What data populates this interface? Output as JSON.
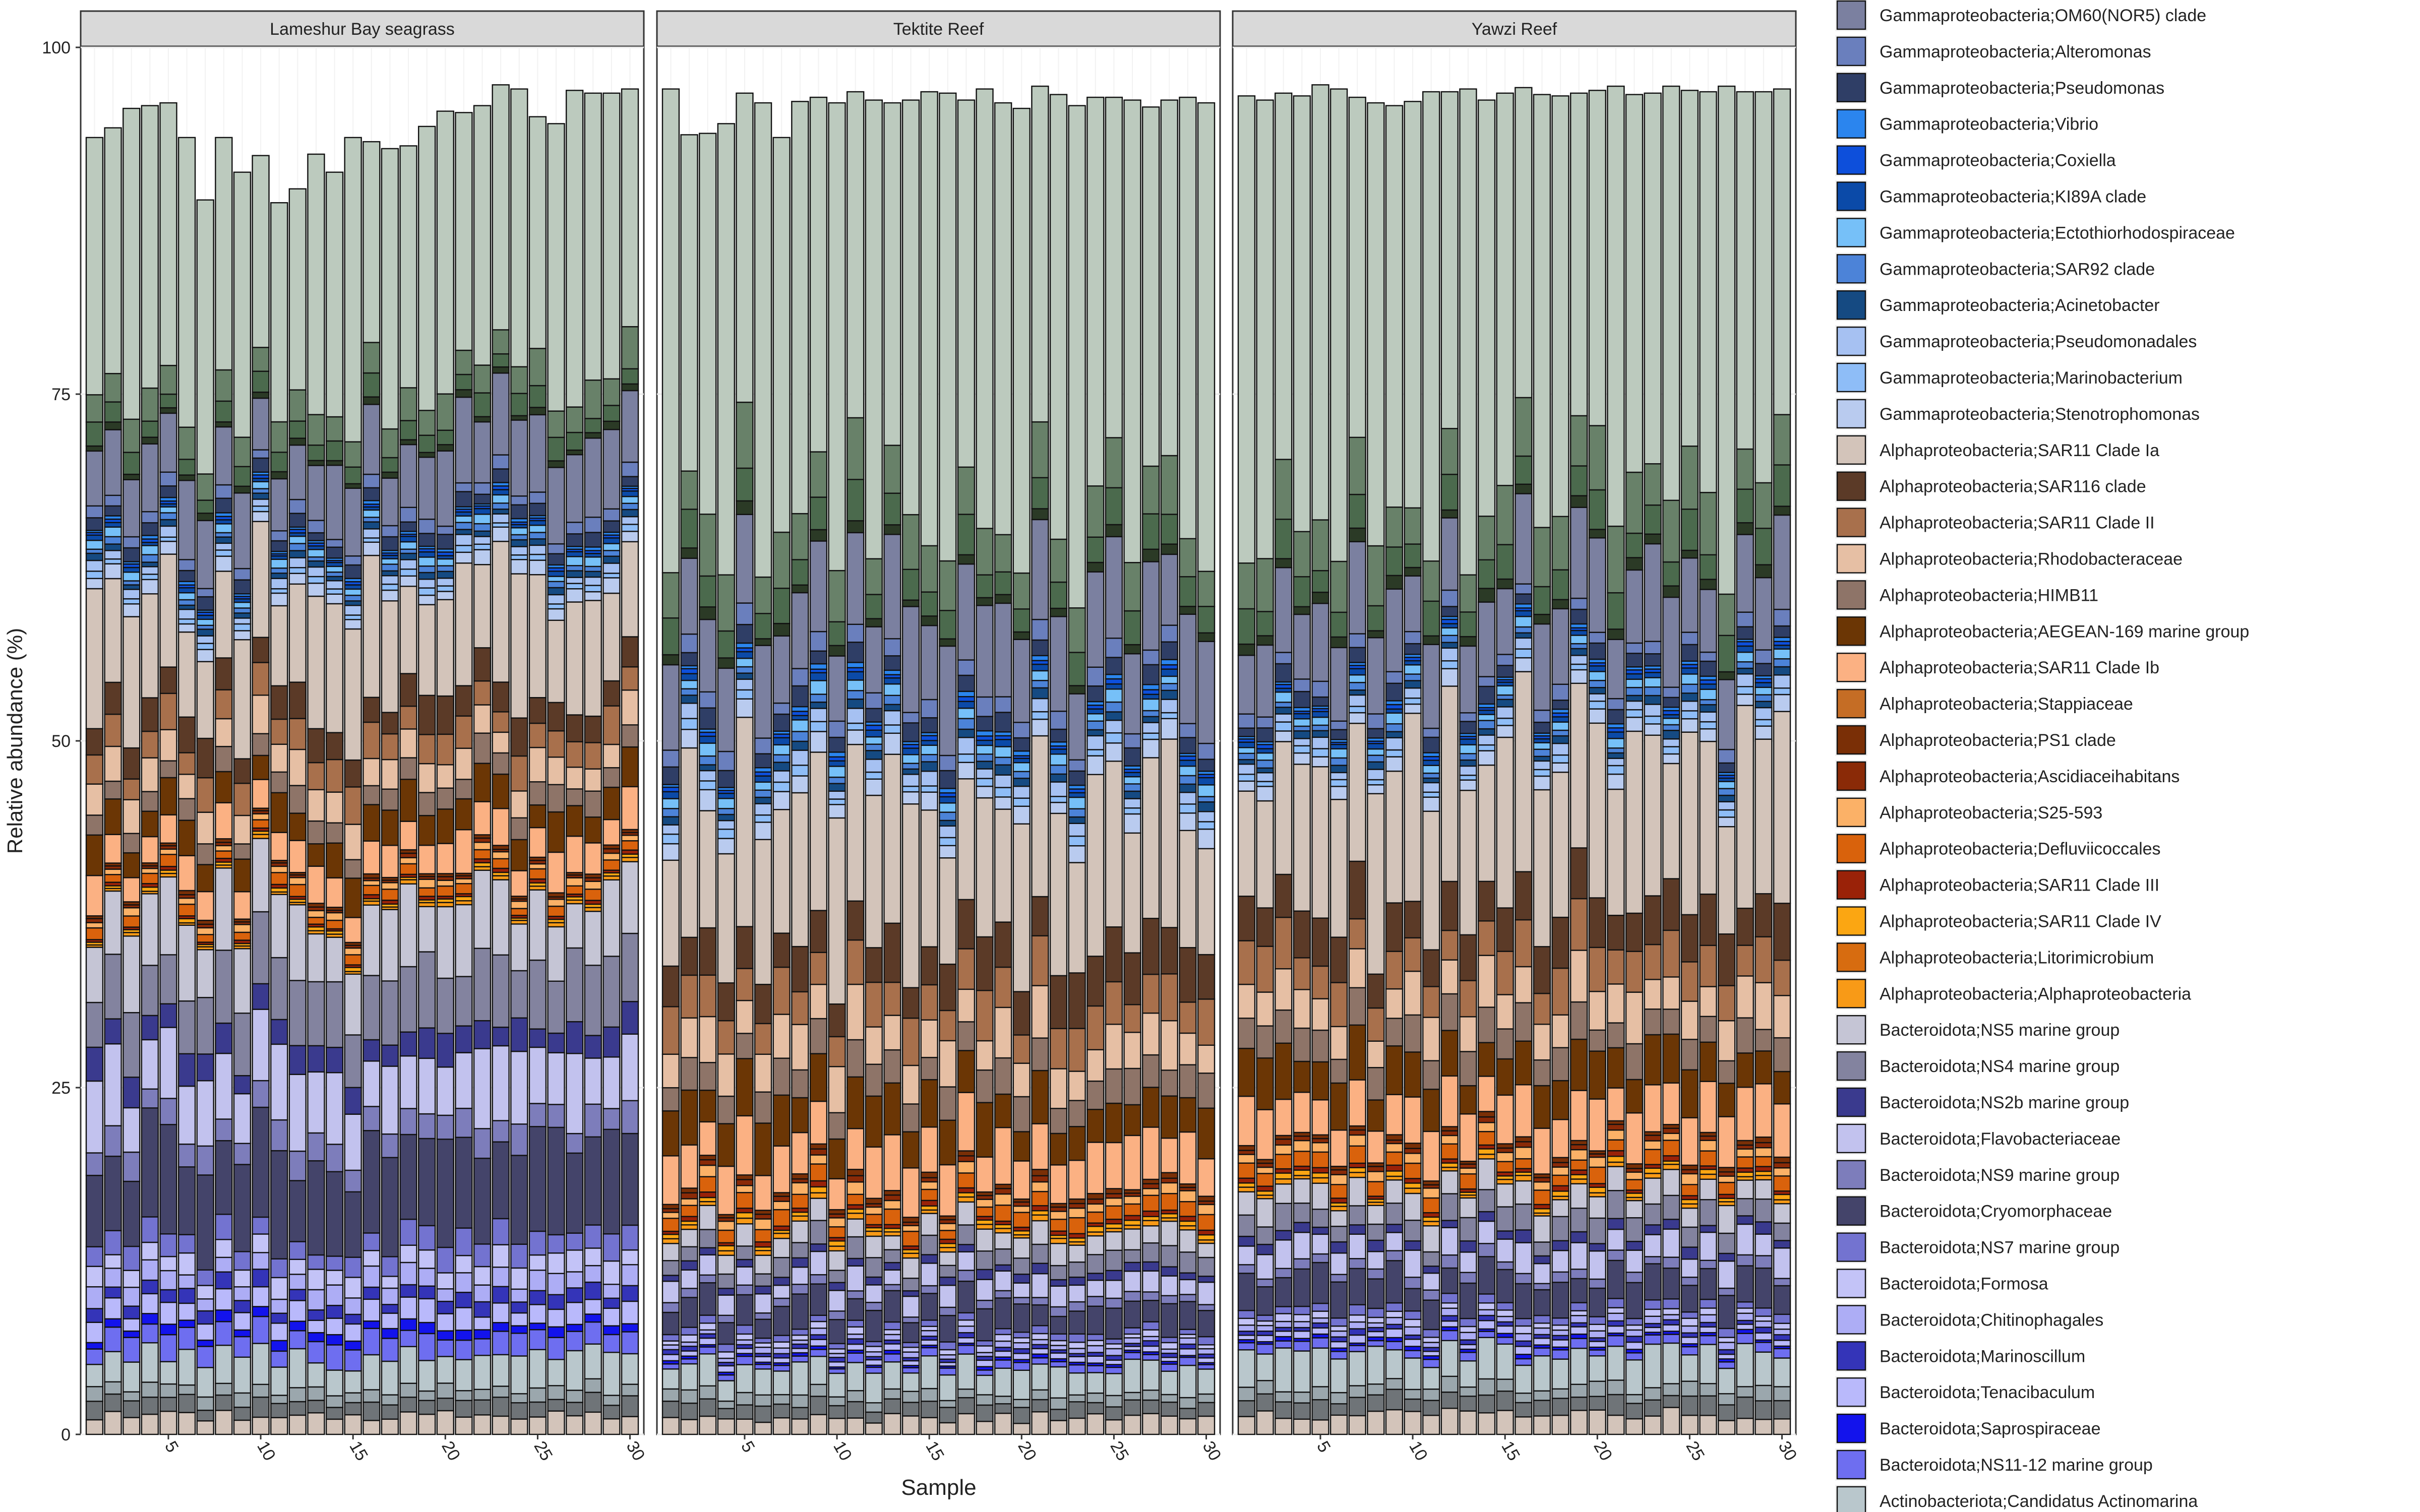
{
  "chart_data": {
    "type": "bar",
    "stacked": true,
    "faceted": true,
    "xlabel": "Sample",
    "ylabel": "Relative abundance (%)",
    "ylim": [
      0,
      100
    ],
    "yticks": [
      0,
      25,
      50,
      75,
      100
    ],
    "xticks": [
      5,
      10,
      15,
      20,
      25,
      30
    ],
    "samples_per_panel": 30,
    "grid": true,
    "legend_position": "right",
    "panels": [
      {
        "label": "Lameshur Bay seagrass",
        "totals": [
          93.5,
          94.2,
          95.6,
          95.8,
          96.0,
          93.5,
          89.0,
          93.5,
          91.0,
          92.2,
          88.8,
          89.8,
          92.3,
          91.0,
          93.5,
          93.2,
          92.7,
          92.9,
          94.3,
          95.4,
          95.3,
          95.8,
          97.3,
          97.0,
          95.0,
          94.5,
          96.9,
          96.7,
          96.7,
          97.0
        ],
        "shares": {
          "green": 24,
          "gamma": 11,
          "alpha": 25,
          "bact": 34,
          "actino": 6
        }
      },
      {
        "label": "Tektite Reef",
        "totals": [
          97.0,
          93.7,
          93.8,
          94.5,
          96.7,
          96.0,
          93.5,
          96.1,
          96.4,
          96.0,
          96.8,
          96.2,
          96.0,
          96.2,
          96.8,
          96.7,
          96.2,
          97.0,
          96.0,
          95.6,
          97.2,
          96.6,
          95.8,
          96.4,
          96.4,
          96.2,
          95.7,
          96.2,
          96.4,
          96.0
        ],
        "shares": {
          "green": 37,
          "gamma": 15,
          "alpha": 33,
          "bact": 10,
          "actino": 5
        }
      },
      {
        "label": "Yawzi Reef",
        "totals": [
          96.5,
          96.2,
          96.7,
          96.5,
          97.3,
          97.0,
          96.4,
          96.0,
          95.8,
          96.1,
          96.8,
          96.8,
          97.0,
          96.2,
          96.7,
          97.1,
          96.6,
          96.5,
          96.7,
          96.9,
          97.2,
          96.6,
          96.7,
          97.2,
          96.9,
          96.8,
          97.2,
          96.8,
          96.8,
          97.0
        ],
        "shares": {
          "green": 38,
          "gamma": 12,
          "alpha": 32,
          "bact": 12,
          "actino": 6
        }
      }
    ],
    "legend": [
      {
        "name": "Gammaproteobacteria;OM60(NOR5) clade",
        "color": "#7b80a0"
      },
      {
        "name": "Gammaproteobacteria;Alteromonas",
        "color": "#6a7fbd"
      },
      {
        "name": "Gammaproteobacteria;Pseudomonas",
        "color": "#2f3e66"
      },
      {
        "name": "Gammaproteobacteria;Vibrio",
        "color": "#2b85ee"
      },
      {
        "name": "Gammaproteobacteria;Coxiella",
        "color": "#0d4fdb"
      },
      {
        "name": "Gammaproteobacteria;KI89A clade",
        "color": "#0b4aa8"
      },
      {
        "name": "Gammaproteobacteria;Ectothiorhodospiraceae",
        "color": "#76c0f8"
      },
      {
        "name": "Gammaproteobacteria;SAR92 clade",
        "color": "#4c83d8"
      },
      {
        "name": "Gammaproteobacteria;Acinetobacter",
        "color": "#154a82"
      },
      {
        "name": "Gammaproteobacteria;Pseudomonadales",
        "color": "#a6c1f2"
      },
      {
        "name": "Gammaproteobacteria;Marinobacterium",
        "color": "#8ebdf7"
      },
      {
        "name": "Gammaproteobacteria;Stenotrophomonas",
        "color": "#b9cbef"
      },
      {
        "name": "Alphaproteobacteria;SAR11 Clade Ia",
        "color": "#d3c4ba"
      },
      {
        "name": "Alphaproteobacteria;SAR116 clade",
        "color": "#5b3a27"
      },
      {
        "name": "Alphaproteobacteria;SAR11 Clade II",
        "color": "#a8704c"
      },
      {
        "name": "Alphaproteobacteria;Rhodobacteraceae",
        "color": "#e6bfa4"
      },
      {
        "name": "Alphaproteobacteria;HIMB11",
        "color": "#8e7468"
      },
      {
        "name": "Alphaproteobacteria;AEGEAN-169 marine group",
        "color": "#6b3605"
      },
      {
        "name": "Alphaproteobacteria;SAR11 Clade Ib",
        "color": "#fbb183"
      },
      {
        "name": "Alphaproteobacteria;Stappiaceae",
        "color": "#c56d25"
      },
      {
        "name": "Alphaproteobacteria;PS1 clade",
        "color": "#7a2f06"
      },
      {
        "name": "Alphaproteobacteria;Ascidiaceihabitans",
        "color": "#8a2a07"
      },
      {
        "name": "Alphaproteobacteria;S25-593",
        "color": "#fbb167"
      },
      {
        "name": "Alphaproteobacteria;Defluviicoccales",
        "color": "#d9620c"
      },
      {
        "name": "Alphaproteobacteria;SAR11 Clade III",
        "color": "#9a2208"
      },
      {
        "name": "Alphaproteobacteria;SAR11 Clade IV",
        "color": "#fba612"
      },
      {
        "name": "Alphaproteobacteria;Litorimicrobium",
        "color": "#d76c10"
      },
      {
        "name": "Alphaproteobacteria;Alphaproteobacteria",
        "color": "#f89a17"
      },
      {
        "name": "Bacteroidota;NS5 marine group",
        "color": "#c5c5d5"
      },
      {
        "name": "Bacteroidota;NS4 marine group",
        "color": "#83839f"
      },
      {
        "name": "Bacteroidota;NS2b marine group",
        "color": "#3a3a8e"
      },
      {
        "name": "Bacteroidota;Flavobacteriaceae",
        "color": "#c2c2ee"
      },
      {
        "name": "Bacteroidota;NS9 marine group",
        "color": "#7d7dbb"
      },
      {
        "name": "Bacteroidota;Cryomorphaceae",
        "color": "#44446a"
      },
      {
        "name": "Bacteroidota;NS7 marine group",
        "color": "#7373d0"
      },
      {
        "name": "Bacteroidota;Formosa",
        "color": "#c3c3f7"
      },
      {
        "name": "Bacteroidota;Chitinophagales",
        "color": "#adadf5"
      },
      {
        "name": "Bacteroidota;Marinoscillum",
        "color": "#3434b8"
      },
      {
        "name": "Bacteroidota;Tenacibaculum",
        "color": "#b9b9fb"
      },
      {
        "name": "Bacteroidota;Saprospiraceae",
        "color": "#1313ec"
      },
      {
        "name": "Bacteroidota;NS11-12 marine group",
        "color": "#6e6ef0"
      },
      {
        "name": "Actinobacteriota;Candidatus Actinomarina",
        "color": "#b9c7cc"
      }
    ],
    "extra_colors": {
      "green_dark": "#688169",
      "green_mid": "#4b6a4d",
      "green_light": "#bccabe",
      "green_black": "#2b3a26",
      "actino_2": "#9ba7ad",
      "actino_3": "#6f7478",
      "actino_4": "#d3c4ba",
      "black": "#111111"
    }
  }
}
